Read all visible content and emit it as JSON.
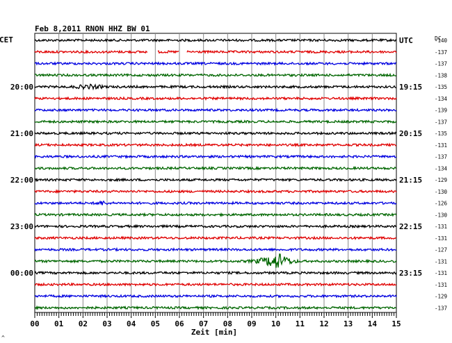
{
  "chart_data": {
    "type": "line",
    "title": "Feb 8,2011   RNON HHZ BW 01",
    "xlabel": "Zeit [min]",
    "left_axis_label": "CET",
    "right_axis_label": "UTC",
    "dc_label": "DC",
    "xlim": [
      0,
      15
    ],
    "x_ticks": [
      "00",
      "01",
      "02",
      "03",
      "04",
      "05",
      "06",
      "07",
      "08",
      "09",
      "10",
      "11",
      "12",
      "13",
      "14",
      "15"
    ],
    "left_time_labels": [
      {
        "row": 4,
        "label": "20:00"
      },
      {
        "row": 8,
        "label": "21:00"
      },
      {
        "row": 12,
        "label": "22:00"
      },
      {
        "row": 16,
        "label": "23:00"
      },
      {
        "row": 20,
        "label": "00:00"
      }
    ],
    "right_time_labels": [
      {
        "row": 0,
        "label": "UTC"
      },
      {
        "row": 4,
        "label": "19:15"
      },
      {
        "row": 8,
        "label": "20:15"
      },
      {
        "row": 12,
        "label": "21:15"
      },
      {
        "row": 16,
        "label": "22:15"
      },
      {
        "row": 20,
        "label": "23:15"
      }
    ],
    "dc_values": [
      "-140",
      "-137",
      "-137",
      "-138",
      "-135",
      "-134",
      "-139",
      "-137",
      "-135",
      "-131",
      "-137",
      "-134",
      "-129",
      "-130",
      "-126",
      "-130",
      "-131",
      "-131",
      "-127",
      "-131",
      "-131",
      "-131",
      "-129",
      "-137"
    ],
    "trace_colors": [
      "#000000",
      "#e00000",
      "#0000e0",
      "#006600"
    ],
    "events": [
      {
        "row": 19,
        "start_min": 8.5,
        "peak_min": 10.1,
        "end_min": 11.2,
        "description": "seismic event"
      },
      {
        "row": 4,
        "start_min": 1.4,
        "peak_min": 2.3,
        "end_min": 3.1,
        "description": "noise burst"
      },
      {
        "row": 14,
        "start_min": 2.4,
        "peak_min": 2.8,
        "end_min": 3.1,
        "description": "noise burst"
      }
    ],
    "gaps": [
      {
        "row": 1,
        "start_min": 4.7,
        "end_min": 5.1
      },
      {
        "row": 1,
        "start_min": 6.0,
        "end_min": 6.3
      }
    ]
  },
  "footer_mark": "^"
}
